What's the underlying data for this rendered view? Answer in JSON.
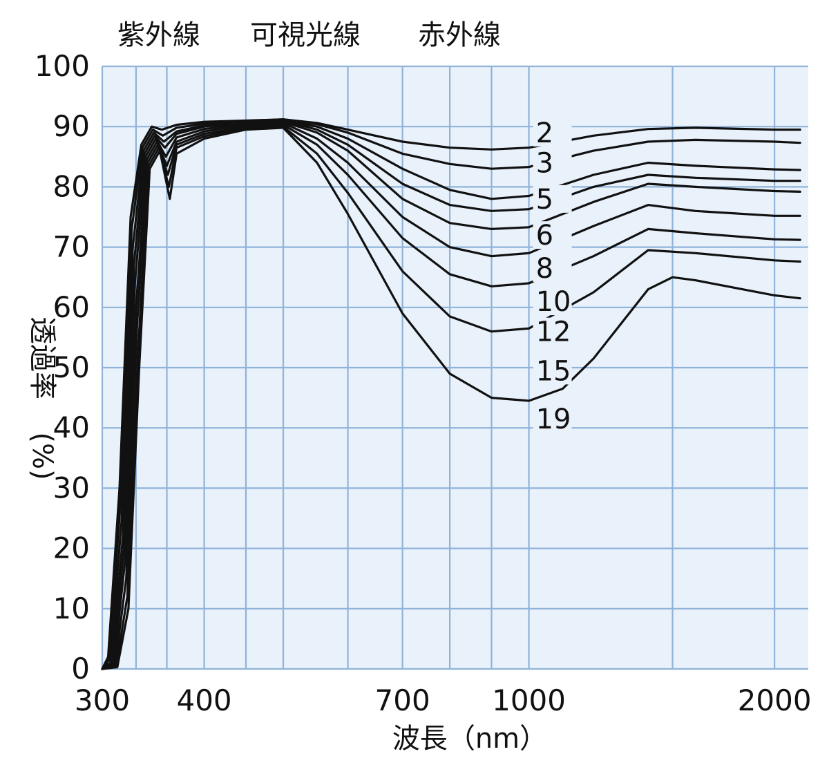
{
  "chart_data": {
    "type": "line",
    "x_scale": "log",
    "xlim": [
      300,
      2200
    ],
    "ylim": [
      0,
      100
    ],
    "grid": true,
    "xlabel": "波長（nm）",
    "ylabel_vertical": "透過率",
    "ylabel_unit": "(%)",
    "region_labels": [
      "紫外線",
      "可視光線",
      "赤外線"
    ],
    "x_ticks": [
      {
        "value": 300,
        "label": "300"
      },
      {
        "value": 400,
        "label": "400"
      },
      {
        "value": 700,
        "label": "700"
      },
      {
        "value": 1000,
        "label": "1000"
      },
      {
        "value": 2000,
        "label": "2000"
      }
    ],
    "y_ticks": [
      {
        "value": 0,
        "label": "0"
      },
      {
        "value": 10,
        "label": "10"
      },
      {
        "value": 20,
        "label": "20"
      },
      {
        "value": 30,
        "label": "30"
      },
      {
        "value": 40,
        "label": "40"
      },
      {
        "value": 50,
        "label": "50"
      },
      {
        "value": 60,
        "label": "60"
      },
      {
        "value": 70,
        "label": "70"
      },
      {
        "value": 80,
        "label": "80"
      },
      {
        "value": 90,
        "label": "90"
      },
      {
        "value": 100,
        "label": "100"
      }
    ],
    "grid_x": [
      300,
      330,
      360,
      400,
      450,
      500,
      600,
      700,
      800,
      900,
      1000,
      1500,
      2000
    ],
    "grid_y": [
      0,
      10,
      20,
      30,
      40,
      50,
      60,
      70,
      80,
      90,
      100
    ],
    "series": [
      {
        "name": "2",
        "label_y": 89.0,
        "points": [
          [
            300,
            0
          ],
          [
            305,
            2
          ],
          [
            315,
            30
          ],
          [
            325,
            75
          ],
          [
            335,
            87
          ],
          [
            345,
            90
          ],
          [
            355,
            89.5
          ],
          [
            370,
            90.3
          ],
          [
            400,
            90.8
          ],
          [
            450,
            91
          ],
          [
            500,
            91.2
          ],
          [
            550,
            90.6
          ],
          [
            600,
            89.5
          ],
          [
            700,
            87.5
          ],
          [
            800,
            86.5
          ],
          [
            900,
            86.2
          ],
          [
            1000,
            86.5
          ],
          [
            1200,
            88.5
          ],
          [
            1400,
            89.6
          ],
          [
            1600,
            89.8
          ],
          [
            2000,
            89.5
          ],
          [
            2150,
            89.5
          ]
        ]
      },
      {
        "name": "3",
        "label_y": 84.0,
        "points": [
          [
            300,
            0
          ],
          [
            306,
            1.5
          ],
          [
            316,
            28
          ],
          [
            326,
            73
          ],
          [
            336,
            86.5
          ],
          [
            346,
            89.5
          ],
          [
            356,
            88.5
          ],
          [
            370,
            89.8
          ],
          [
            400,
            90.5
          ],
          [
            450,
            90.9
          ],
          [
            500,
            91.2
          ],
          [
            550,
            90.4
          ],
          [
            600,
            89
          ],
          [
            700,
            85.5
          ],
          [
            800,
            83.8
          ],
          [
            900,
            83
          ],
          [
            1000,
            83.3
          ],
          [
            1200,
            86
          ],
          [
            1400,
            87.5
          ],
          [
            1600,
            87.8
          ],
          [
            2000,
            87.5
          ],
          [
            2150,
            87.3
          ]
        ]
      },
      {
        "name": "5",
        "label_y": 78.0,
        "points": [
          [
            300,
            0
          ],
          [
            307,
            1
          ],
          [
            317,
            25
          ],
          [
            327,
            70
          ],
          [
            337,
            86
          ],
          [
            347,
            89
          ],
          [
            357,
            87.5
          ],
          [
            370,
            89.2
          ],
          [
            400,
            90.2
          ],
          [
            450,
            90.8
          ],
          [
            500,
            91
          ],
          [
            550,
            90
          ],
          [
            600,
            88
          ],
          [
            700,
            83
          ],
          [
            800,
            79.5
          ],
          [
            900,
            78
          ],
          [
            1000,
            78.5
          ],
          [
            1200,
            82
          ],
          [
            1400,
            84
          ],
          [
            1600,
            83.5
          ],
          [
            2000,
            82.9
          ],
          [
            2150,
            82.8
          ]
        ]
      },
      {
        "name": "6",
        "label_y": 72.0,
        "points": [
          [
            300,
            0
          ],
          [
            308,
            1
          ],
          [
            318,
            22
          ],
          [
            328,
            67
          ],
          [
            338,
            85.5
          ],
          [
            348,
            88.5
          ],
          [
            358,
            86.5
          ],
          [
            370,
            88.8
          ],
          [
            400,
            90
          ],
          [
            450,
            90.7
          ],
          [
            500,
            91
          ],
          [
            550,
            89.5
          ],
          [
            600,
            87
          ],
          [
            700,
            80.5
          ],
          [
            800,
            77
          ],
          [
            900,
            76
          ],
          [
            1000,
            76.3
          ],
          [
            1200,
            80
          ],
          [
            1400,
            82
          ],
          [
            1600,
            81.5
          ],
          [
            2000,
            81
          ],
          [
            2150,
            81
          ]
        ]
      },
      {
        "name": "8",
        "label_y": 66.5,
        "points": [
          [
            300,
            0
          ],
          [
            309,
            0.8
          ],
          [
            319,
            20
          ],
          [
            329,
            64
          ],
          [
            339,
            85
          ],
          [
            349,
            88
          ],
          [
            359,
            85
          ],
          [
            370,
            88.2
          ],
          [
            400,
            89.6
          ],
          [
            450,
            90.5
          ],
          [
            500,
            90.8
          ],
          [
            550,
            89
          ],
          [
            600,
            86
          ],
          [
            700,
            78
          ],
          [
            800,
            74
          ],
          [
            900,
            73
          ],
          [
            1000,
            73.3
          ],
          [
            1200,
            77.5
          ],
          [
            1400,
            80.5
          ],
          [
            1600,
            80
          ],
          [
            2000,
            79.3
          ],
          [
            2150,
            79.2
          ]
        ]
      },
      {
        "name": "10",
        "label_y": 61.0,
        "points": [
          [
            300,
            0
          ],
          [
            310,
            0.6
          ],
          [
            320,
            18
          ],
          [
            330,
            60
          ],
          [
            340,
            84.5
          ],
          [
            350,
            87.5
          ],
          [
            360,
            83.5
          ],
          [
            370,
            87.5
          ],
          [
            400,
            89.2
          ],
          [
            450,
            90.3
          ],
          [
            500,
            90.6
          ],
          [
            550,
            88
          ],
          [
            600,
            84
          ],
          [
            700,
            75
          ],
          [
            800,
            70
          ],
          [
            900,
            68.5
          ],
          [
            1000,
            69
          ],
          [
            1200,
            73.5
          ],
          [
            1400,
            77
          ],
          [
            1600,
            76
          ],
          [
            2000,
            75.2
          ],
          [
            2150,
            75.2
          ]
        ]
      },
      {
        "name": "12",
        "label_y": 56.0,
        "points": [
          [
            300,
            0
          ],
          [
            311,
            0.5
          ],
          [
            321,
            15
          ],
          [
            331,
            57
          ],
          [
            341,
            84
          ],
          [
            351,
            87
          ],
          [
            361,
            82
          ],
          [
            370,
            87
          ],
          [
            400,
            88.8
          ],
          [
            450,
            90
          ],
          [
            500,
            90.3
          ],
          [
            550,
            87
          ],
          [
            600,
            82
          ],
          [
            700,
            71.5
          ],
          [
            800,
            65.5
          ],
          [
            900,
            63.5
          ],
          [
            1000,
            64
          ],
          [
            1200,
            68.5
          ],
          [
            1400,
            73
          ],
          [
            1600,
            72.3
          ],
          [
            2000,
            71.3
          ],
          [
            2150,
            71.2
          ]
        ]
      },
      {
        "name": "15",
        "label_y": 49.5,
        "points": [
          [
            300,
            0
          ],
          [
            312,
            0.4
          ],
          [
            322,
            12
          ],
          [
            332,
            53
          ],
          [
            342,
            83.5
          ],
          [
            352,
            86.5
          ],
          [
            362,
            80
          ],
          [
            370,
            86.5
          ],
          [
            400,
            88.4
          ],
          [
            450,
            89.8
          ],
          [
            500,
            90
          ],
          [
            550,
            85.5
          ],
          [
            600,
            79
          ],
          [
            700,
            66
          ],
          [
            800,
            58.5
          ],
          [
            900,
            56
          ],
          [
            1000,
            56.5
          ],
          [
            1200,
            62.5
          ],
          [
            1400,
            69.5
          ],
          [
            1600,
            69
          ],
          [
            2000,
            67.8
          ],
          [
            2150,
            67.6
          ]
        ]
      },
      {
        "name": "19",
        "label_y": 41.5,
        "points": [
          [
            300,
            0
          ],
          [
            313,
            0.3
          ],
          [
            323,
            10
          ],
          [
            333,
            50
          ],
          [
            343,
            83
          ],
          [
            353,
            86
          ],
          [
            363,
            78
          ],
          [
            370,
            85.5
          ],
          [
            400,
            88
          ],
          [
            450,
            89.5
          ],
          [
            500,
            89.8
          ],
          [
            550,
            84
          ],
          [
            600,
            75.5
          ],
          [
            700,
            59
          ],
          [
            800,
            49
          ],
          [
            900,
            45
          ],
          [
            1000,
            44.5
          ],
          [
            1100,
            46.5
          ],
          [
            1200,
            51.5
          ],
          [
            1400,
            63
          ],
          [
            1500,
            65
          ],
          [
            1600,
            64.5
          ],
          [
            2000,
            62
          ],
          [
            2150,
            61.5
          ]
        ]
      }
    ]
  }
}
